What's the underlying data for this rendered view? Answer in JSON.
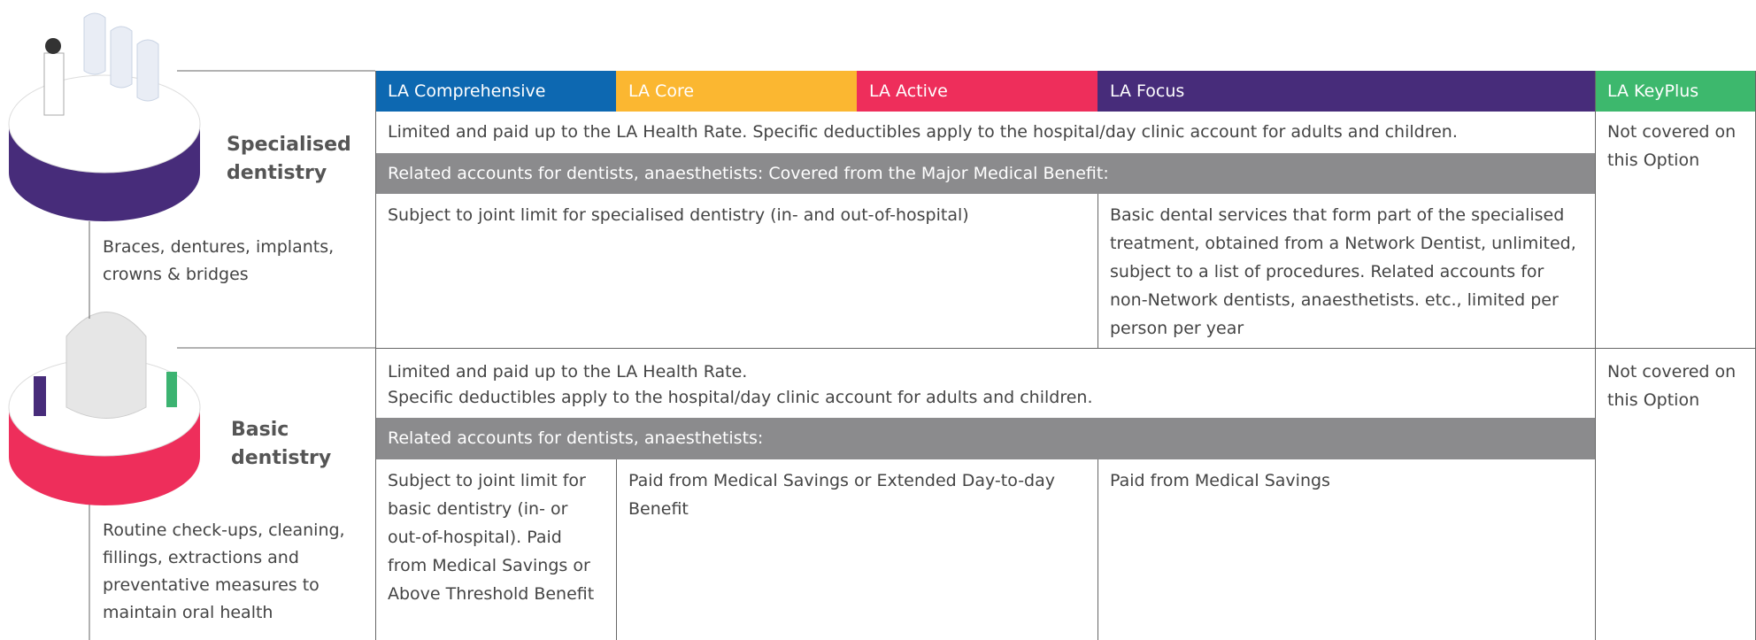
{
  "columns": [
    "LA Comprehensive",
    "LA Core",
    "LA Active",
    "LA Focus",
    "LA KeyPlus"
  ],
  "sections": [
    {
      "title": "Specialised dentistry",
      "description": "Braces, dentures, implants, crowns & bridges",
      "intro": [
        "Limited and paid up to the LA Health Rate. Specific deductibles apply to the hospital/day clinic account for adults and children."
      ],
      "related": "Related accounts for dentists, anaesthetists:  Covered from the Major Medical Benefit:",
      "details": [
        "Subject to joint limit for specialised dentistry (in- and out-of-hospital)",
        "Basic dental services that form part of the specialised treatment, obtained from a Network Dentist, unlimited, subject to a list of procedures. Related accounts for non-Network dentists, anaesthetists. etc., limited per person per year"
      ],
      "keyplus": "Not covered on this Option"
    },
    {
      "title": "Basic dentistry",
      "description": "Routine check-ups, cleaning, fillings, extractions and preventative measures to maintain oral health",
      "intro": [
        "Limited and paid up to the LA Health Rate.",
        "Specific deductibles apply to the hospital/day clinic account for adults and children."
      ],
      "related": "Related accounts for dentists, anaesthetists:",
      "details": [
        "Subject to joint limit for basic dentistry (in- or out-of-hospital). Paid from Medical Savings or Above Threshold Benefit",
        "Paid from Medical Savings or Extended Day-to-day Benefit",
        "Paid from Medical Savings"
      ],
      "keyplus": "Not covered on this Option"
    }
  ]
}
